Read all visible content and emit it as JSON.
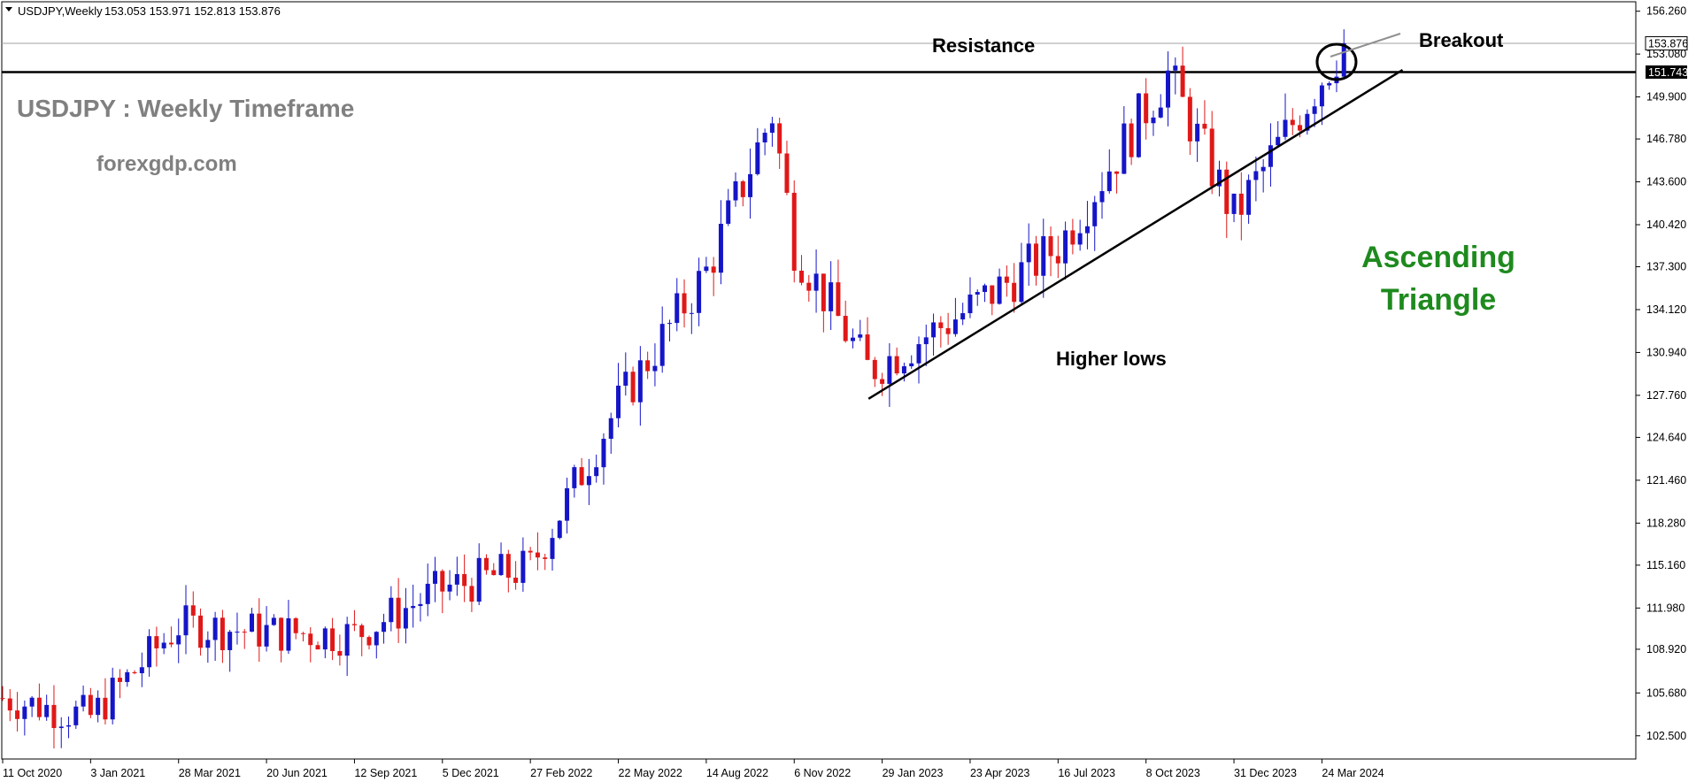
{
  "header": {
    "symbol": "USDJPY,Weekly",
    "ohlc": "153.053 153.971 152.813 153.876"
  },
  "annotations": {
    "title": "USDJPY : Weekly Timeframe",
    "site": "forexgdp.com",
    "resistance": "Resistance",
    "breakout": "Breakout",
    "higher_lows": "Higher lows",
    "pattern_line1": "Ascending",
    "pattern_line2": "Triangle"
  },
  "colors": {
    "bull": "#1515c8",
    "bear": "#e01818",
    "pattern_text": "#1e8a1e",
    "watermark": "#808080",
    "price_tag": "#000000"
  },
  "chart_data": {
    "type": "candlestick",
    "timeframe": "Weekly",
    "symbol": "USDJPY",
    "ylim": [
      101.5,
      156.5
    ],
    "y_ticks": [
      "156.260",
      "153.080",
      "149.900",
      "146.780",
      "143.600",
      "140.420",
      "137.300",
      "134.120",
      "130.940",
      "127.760",
      "124.640",
      "121.460",
      "118.280",
      "115.160",
      "111.980",
      "108.920",
      "105.680",
      "102.500"
    ],
    "x_ticks": [
      "11 Oct 2020",
      "3 Jan 2021",
      "28 Mar 2021",
      "20 Jun 2021",
      "12 Sep 2021",
      "5 Dec 2021",
      "27 Feb 2022",
      "22 May 2022",
      "14 Aug 2022",
      "6 Nov 2022",
      "29 Jan 2023",
      "23 Apr 2023",
      "16 Jul 2023",
      "8 Oct 2023",
      "31 Dec 2023",
      "24 Mar 2024"
    ],
    "current_price": "153.876",
    "current_price_value": 153.876,
    "resistance_level": "151.743",
    "resistance_value": 151.743,
    "trendline": {
      "start": {
        "date": "2023-01-16",
        "price": 127.5
      },
      "end": {
        "date": "2024-06-09",
        "price": 151.9
      }
    },
    "breakout_marker": {
      "date": "2024-04-07",
      "price": 152.5
    },
    "key_points": [
      {
        "date": "2020-10-11",
        "close": 105.3
      },
      {
        "date": "2021-01-03",
        "close": 103.9
      },
      {
        "date": "2021-03-28",
        "close": 110.7
      },
      {
        "date": "2021-06-20",
        "close": 110.2
      },
      {
        "date": "2021-09-12",
        "close": 110.0
      },
      {
        "date": "2021-12-05",
        "close": 113.4
      },
      {
        "date": "2022-02-27",
        "close": 115.0
      },
      {
        "date": "2022-05-22",
        "close": 127.1
      },
      {
        "date": "2022-08-14",
        "close": 136.9
      },
      {
        "date": "2022-10-16",
        "close": 148.7
      },
      {
        "date": "2022-11-06",
        "close": 138.9
      },
      {
        "date": "2023-01-16",
        "close": 129.6
      },
      {
        "date": "2023-04-23",
        "close": 134.2
      },
      {
        "date": "2023-07-16",
        "close": 138.8
      },
      {
        "date": "2023-10-29",
        "close": 151.6
      },
      {
        "date": "2023-12-31",
        "close": 141.0
      },
      {
        "date": "2024-03-24",
        "close": 151.4
      },
      {
        "date": "2024-04-14",
        "close": 153.876
      }
    ]
  }
}
